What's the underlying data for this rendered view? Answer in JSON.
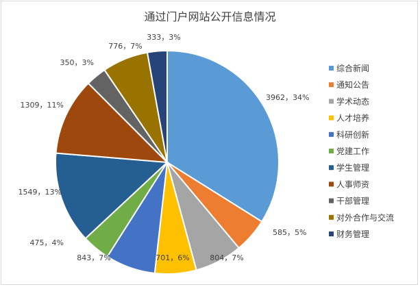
{
  "chart_data": {
    "type": "pie",
    "title": "通过门户网站公开信息情况",
    "legend_position": "right",
    "slices": [
      {
        "name": "综合新闻",
        "value": 3962,
        "percent_label": "34%",
        "color": "#5B9BD5"
      },
      {
        "name": "通知公告",
        "value": 585,
        "percent_label": "5%",
        "color": "#ED7D31"
      },
      {
        "name": "学术动态",
        "value": 804,
        "percent_label": "7%",
        "color": "#A5A5A5"
      },
      {
        "name": "人才培养",
        "value": 701,
        "percent_label": "6%",
        "color": "#FFC000"
      },
      {
        "name": "科研创新",
        "value": 843,
        "percent_label": "7%",
        "color": "#4472C4"
      },
      {
        "name": "党建工作",
        "value": 475,
        "percent_label": "4%",
        "color": "#70AD47"
      },
      {
        "name": "学生管理",
        "value": 1549,
        "percent_label": "13%",
        "color": "#255E91"
      },
      {
        "name": "人事师资",
        "value": 1309,
        "percent_label": "11%",
        "color": "#9E480E"
      },
      {
        "name": "干部管理",
        "value": 350,
        "percent_label": "3%",
        "color": "#636363"
      },
      {
        "name": "对外合作与交流",
        "value": 776,
        "percent_label": "7%",
        "color": "#997300"
      },
      {
        "name": "财务管理",
        "value": 333,
        "percent_label": "3%",
        "color": "#264478"
      }
    ]
  }
}
